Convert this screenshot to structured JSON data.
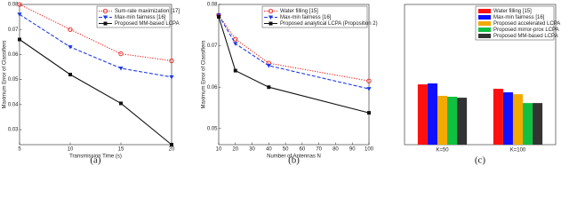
{
  "chart_data": [
    {
      "type": "line",
      "caption": "(a)",
      "xlabel": "Transmission Time (s)",
      "ylabel": "Maximum Error of Classifiers",
      "x": [
        5,
        10,
        15,
        20
      ],
      "xlim": [
        5,
        20
      ],
      "xticks": [
        5,
        10,
        15,
        20
      ],
      "ylim": [
        0.024,
        0.08
      ],
      "yticks": [
        0.03,
        0.04,
        0.05,
        0.06,
        0.07,
        0.08
      ],
      "legend": "upper right",
      "series": [
        {
          "name": "Sum-rate maximization [17]",
          "color": "#e8231f",
          "dash": "dotted",
          "marker": "circle",
          "values": [
            0.08,
            0.07,
            0.0603,
            0.0575
          ]
        },
        {
          "name": "Max-min fairness [16]",
          "color": "#1f3be8",
          "dash": "dashed",
          "marker": "triangle",
          "values": [
            0.076,
            0.063,
            0.0545,
            0.051
          ]
        },
        {
          "name": "Proposed MM-based LCPA",
          "color": "#111111",
          "dash": "solid",
          "marker": "square",
          "values": [
            0.066,
            0.052,
            0.0405,
            0.024
          ]
        }
      ]
    },
    {
      "type": "line",
      "caption": "(b)",
      "xlabel": "Number of Antennas N",
      "ylabel": "Maximum Error of Classifiers",
      "x": [
        10,
        20,
        40,
        100
      ],
      "xlim": [
        10,
        100
      ],
      "xticks": [
        10,
        20,
        30,
        40,
        50,
        60,
        70,
        80,
        90,
        100
      ],
      "ylim": [
        0.0461,
        0.08
      ],
      "yticks": [
        0.05,
        0.06,
        0.07,
        0.08
      ],
      "legend": "upper right",
      "series": [
        {
          "name": "Water filling [15]",
          "color": "#e8231f",
          "dash": "dotted",
          "marker": "circle",
          "values": [
            0.0774,
            0.0716,
            0.0658,
            0.0615
          ]
        },
        {
          "name": "Max-min fairness [16]",
          "color": "#1f3be8",
          "dash": "dashed",
          "marker": "triangle",
          "values": [
            0.0774,
            0.0705,
            0.0652,
            0.0596
          ]
        },
        {
          "name": "Proposed analytical LCPA (Proposition 2)",
          "color": "#111111",
          "dash": "solid",
          "marker": "square",
          "values": [
            0.077,
            0.064,
            0.06,
            0.0538
          ]
        }
      ]
    },
    {
      "type": "bar",
      "caption": "(c)",
      "categories": [
        "K=50",
        "K=100"
      ],
      "ylim": [
        0,
        0.06
      ],
      "legend": "upper right",
      "series": [
        {
          "name": "Water filling [15]",
          "color": "#ff1010",
          "values": [
            0.0258,
            0.0239
          ]
        },
        {
          "name": "Max-min fairness [16]",
          "color": "#1010ff",
          "values": [
            0.0262,
            0.0224
          ]
        },
        {
          "name": "Proposed accelerated LCPA",
          "color": "#f2a900",
          "values": [
            0.0209,
            0.0216
          ]
        },
        {
          "name": "Proposed mirror-prox LCPA",
          "color": "#10c040",
          "values": [
            0.0205,
            0.0178
          ]
        },
        {
          "name": "Proposed MM-based LCPA",
          "color": "#333333",
          "values": [
            0.0201,
            0.0178
          ]
        }
      ]
    }
  ]
}
